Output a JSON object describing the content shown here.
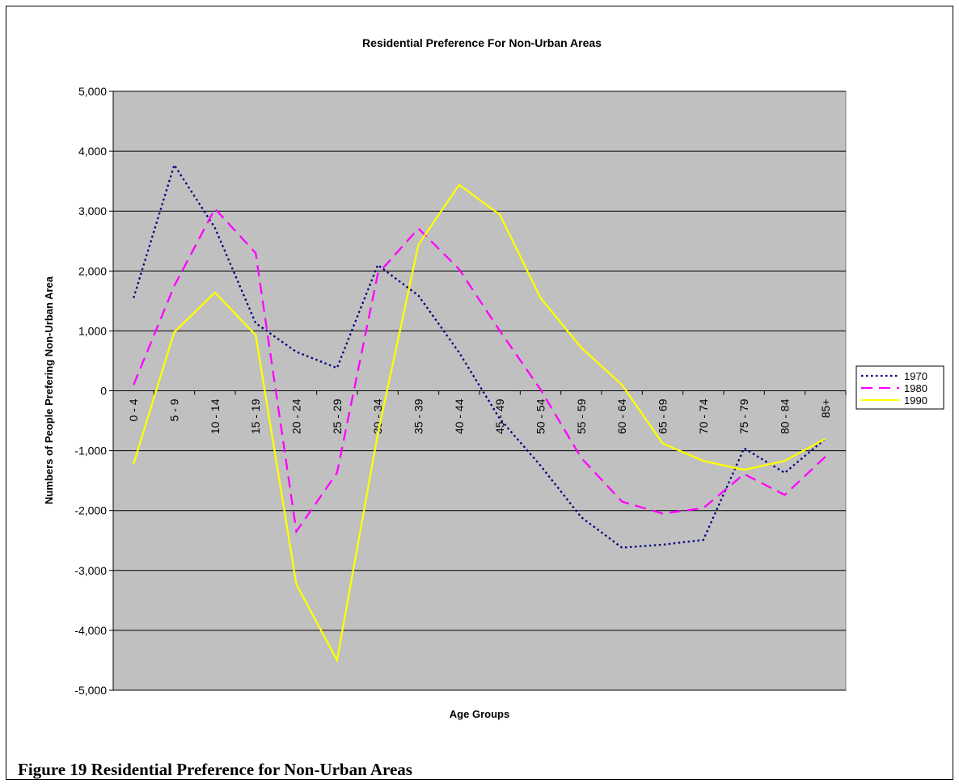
{
  "figure_caption": "Figure 19 Residential Preference for Non-Urban Areas",
  "chart_data": {
    "type": "line",
    "title": "Residential Preference For Non-Urban Areas",
    "xlabel": "Age Groups",
    "ylabel": "Numbers of People Prefering Non-Urban Area",
    "ylim": [
      -5000,
      5000
    ],
    "yticks": [
      5000,
      4000,
      3000,
      2000,
      1000,
      0,
      -1000,
      -2000,
      -3000,
      -4000,
      -5000
    ],
    "ytick_labels": [
      "5,000",
      "4,000",
      "3,000",
      "2,000",
      "1,000",
      "0",
      "-1,000",
      "-2,000",
      "-3,000",
      "-4,000",
      "-5,000"
    ],
    "grid": true,
    "legend_position": "right",
    "plot_background": "#C0C0C0",
    "categories": [
      "0 - 4",
      "5 - 9",
      "10 - 14",
      "15 - 19",
      "20 - 24",
      "25 - 29",
      "30 - 34",
      "35 - 39",
      "40 - 44",
      "45 - 49",
      "50 - 54",
      "55 - 59",
      "60 - 64",
      "65 - 69",
      "70 - 74",
      "75 - 79",
      "80 - 84",
      "85+"
    ],
    "series": [
      {
        "name": "1970",
        "color": "#000080",
        "dash": "dotted",
        "values": [
          1550,
          3770,
          2720,
          1130,
          650,
          380,
          2100,
          1590,
          640,
          -470,
          -1250,
          -2110,
          -2620,
          -2570,
          -2490,
          -960,
          -1370,
          -800
        ]
      },
      {
        "name": "1980",
        "color": "#FF00FF",
        "dash": "dashed",
        "values": [
          100,
          1750,
          3040,
          2300,
          -2350,
          -1370,
          1950,
          2710,
          2030,
          1000,
          20,
          -1120,
          -1850,
          -2050,
          -1960,
          -1390,
          -1740,
          -1100
        ]
      },
      {
        "name": "1990",
        "color": "#FFFF00",
        "dash": "solid",
        "values": [
          -1220,
          980,
          1640,
          930,
          -3230,
          -4500,
          -720,
          2440,
          3440,
          2940,
          1550,
          720,
          100,
          -880,
          -1170,
          -1320,
          -1170,
          -800
        ]
      }
    ]
  }
}
